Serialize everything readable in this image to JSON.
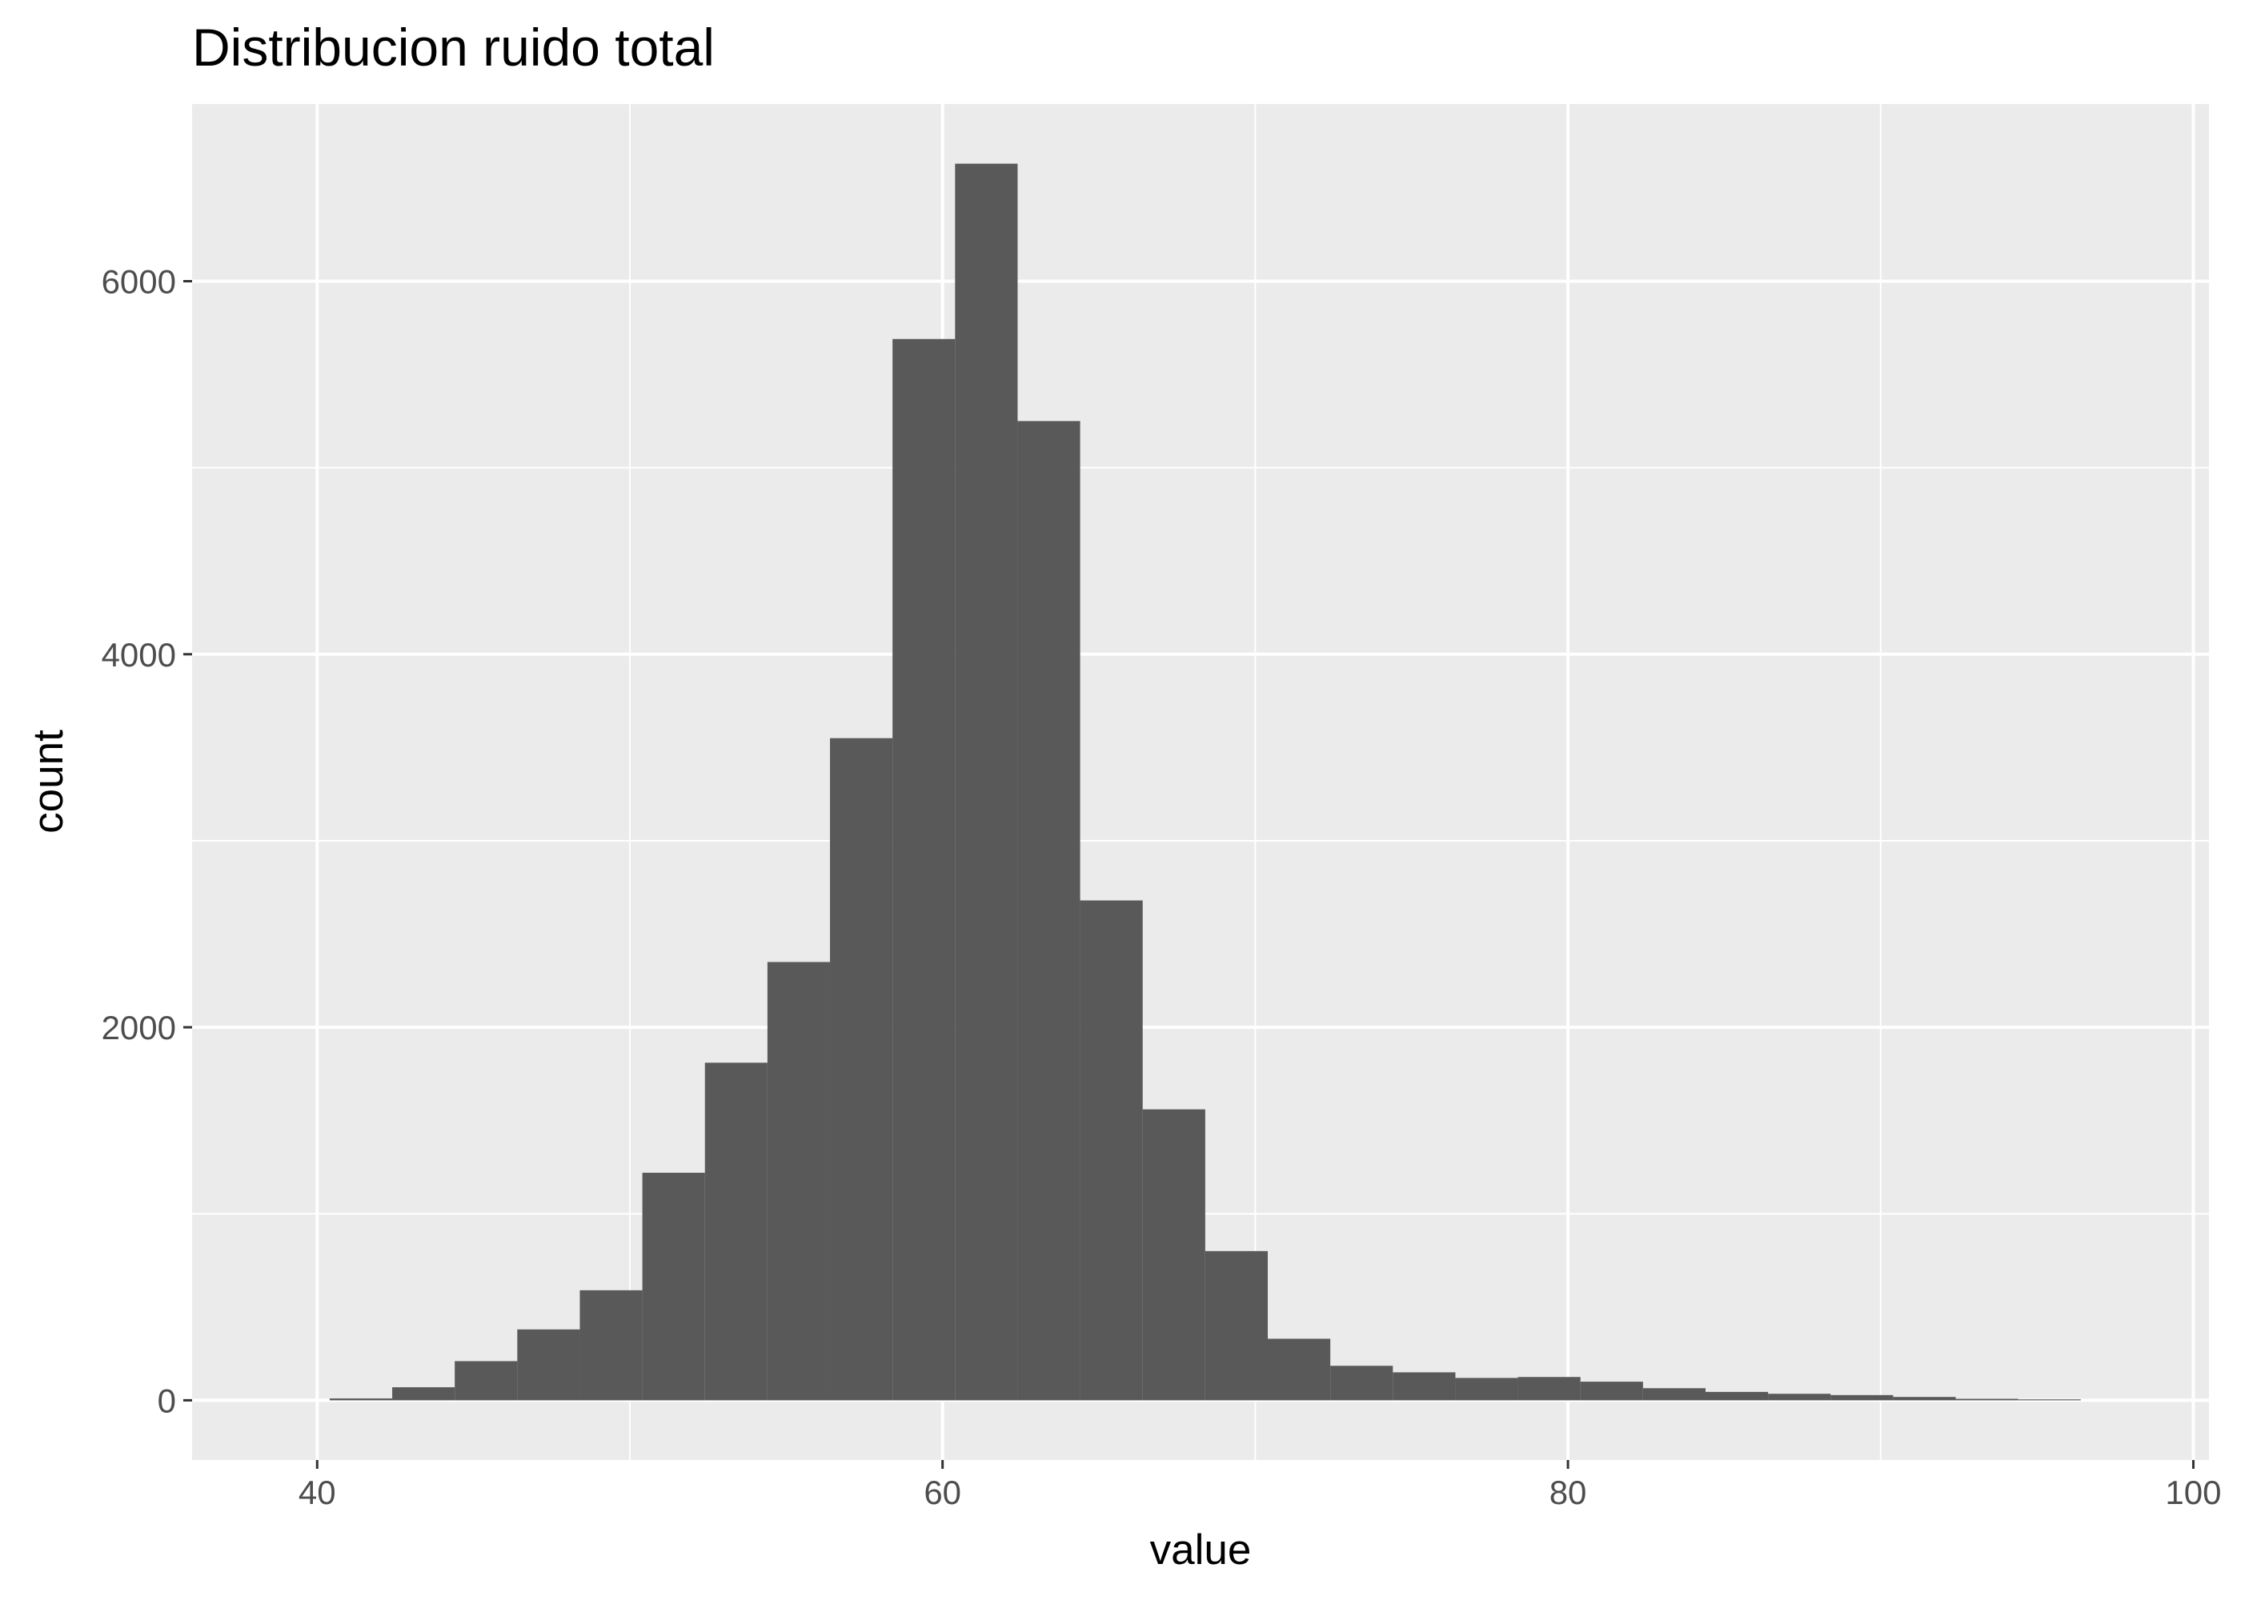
{
  "chart_data": {
    "type": "bar",
    "title": "Distribucion ruido total",
    "xlabel": "value",
    "ylabel": "count",
    "xlim": [
      36,
      100.5
    ],
    "ylim": [
      -320,
      6950
    ],
    "x_ticks": [
      40,
      60,
      80,
      100
    ],
    "x_tick_labels": [
      "40",
      "60",
      "80",
      "100"
    ],
    "y_ticks": [
      0,
      2000,
      4000,
      6000
    ],
    "y_tick_labels": [
      "0",
      "2000",
      "4000",
      "6000"
    ],
    "grid": true,
    "legend": "none",
    "colors": {
      "panel": "#ebebeb",
      "grid": "#ffffff",
      "bar": "#595959",
      "tick_text": "#4d4d4d",
      "tick_mark": "#333333"
    },
    "bins": [
      {
        "x0": 40.4,
        "x1": 42.4,
        "count": 10
      },
      {
        "x0": 42.4,
        "x1": 44.4,
        "count": 70
      },
      {
        "x0": 44.4,
        "x1": 46.4,
        "count": 210
      },
      {
        "x0": 46.4,
        "x1": 48.4,
        "count": 380
      },
      {
        "x0": 48.4,
        "x1": 50.4,
        "count": 590
      },
      {
        "x0": 50.4,
        "x1": 52.4,
        "count": 1220
      },
      {
        "x0": 52.4,
        "x1": 54.4,
        "count": 1810
      },
      {
        "x0": 54.4,
        "x1": 56.4,
        "count": 2350
      },
      {
        "x0": 56.4,
        "x1": 58.4,
        "count": 3550
      },
      {
        "x0": 58.4,
        "x1": 60.4,
        "count": 5690
      },
      {
        "x0": 60.4,
        "x1": 62.4,
        "count": 6630
      },
      {
        "x0": 62.4,
        "x1": 64.4,
        "count": 5250
      },
      {
        "x0": 64.4,
        "x1": 66.4,
        "count": 2680
      },
      {
        "x0": 66.4,
        "x1": 68.4,
        "count": 1560
      },
      {
        "x0": 68.4,
        "x1": 70.4,
        "count": 800
      },
      {
        "x0": 70.4,
        "x1": 72.4,
        "count": 330
      },
      {
        "x0": 72.4,
        "x1": 74.4,
        "count": 185
      },
      {
        "x0": 74.4,
        "x1": 76.4,
        "count": 150
      },
      {
        "x0": 76.4,
        "x1": 78.4,
        "count": 120
      },
      {
        "x0": 78.4,
        "x1": 80.4,
        "count": 125
      },
      {
        "x0": 80.4,
        "x1": 82.4,
        "count": 100
      },
      {
        "x0": 82.4,
        "x1": 84.4,
        "count": 65
      },
      {
        "x0": 84.4,
        "x1": 86.4,
        "count": 45
      },
      {
        "x0": 86.4,
        "x1": 88.4,
        "count": 35
      },
      {
        "x0": 88.4,
        "x1": 90.4,
        "count": 28
      },
      {
        "x0": 90.4,
        "x1": 92.4,
        "count": 18
      },
      {
        "x0": 92.4,
        "x1": 94.4,
        "count": 8
      },
      {
        "x0": 94.4,
        "x1": 96.4,
        "count": 5
      }
    ]
  }
}
